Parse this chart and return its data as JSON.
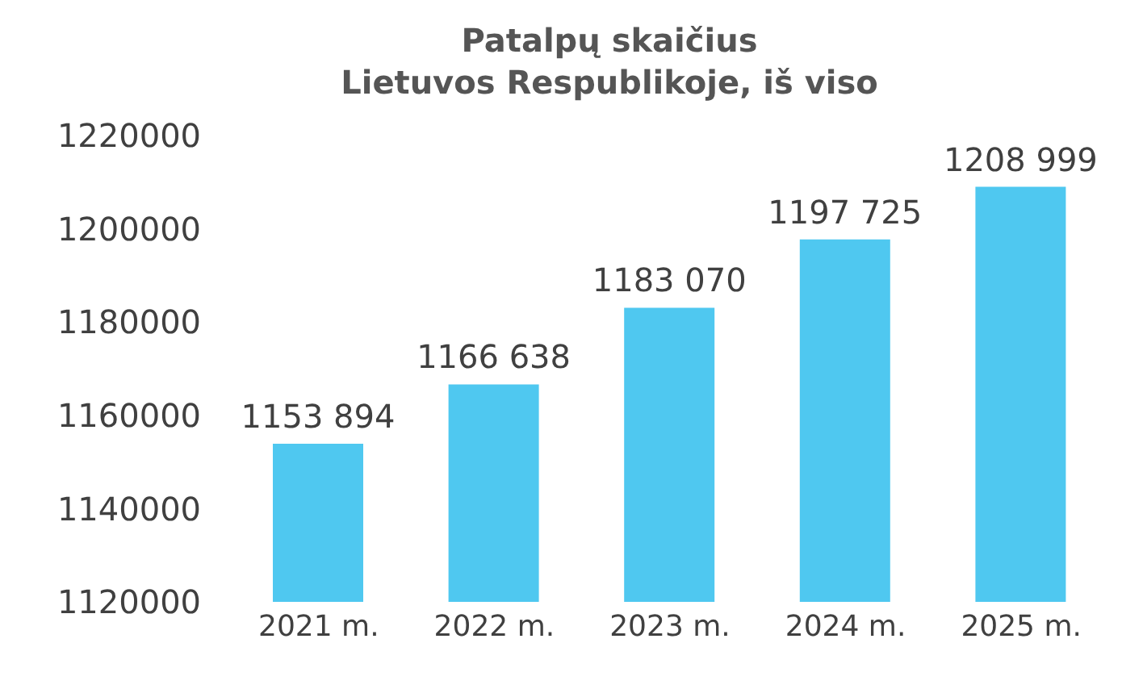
{
  "chart_data": {
    "type": "bar",
    "title": "Patalpų skaičius\nLietuvos Respublikoje, iš viso",
    "categories": [
      "2021 m.",
      "2022 m.",
      "2023 m.",
      "2024 m.",
      "2025 m."
    ],
    "values": [
      1153894,
      1166638,
      1183070,
      1197725,
      1208999
    ],
    "value_labels": [
      "1153 894",
      "1166 638",
      "1183 070",
      "1197 725",
      "1208 999"
    ],
    "color": "#4fc8f0",
    "ylim": [
      1120000,
      1220000
    ],
    "yticks": [
      1120000,
      1140000,
      1160000,
      1180000,
      1200000,
      1220000
    ],
    "grid": false
  }
}
